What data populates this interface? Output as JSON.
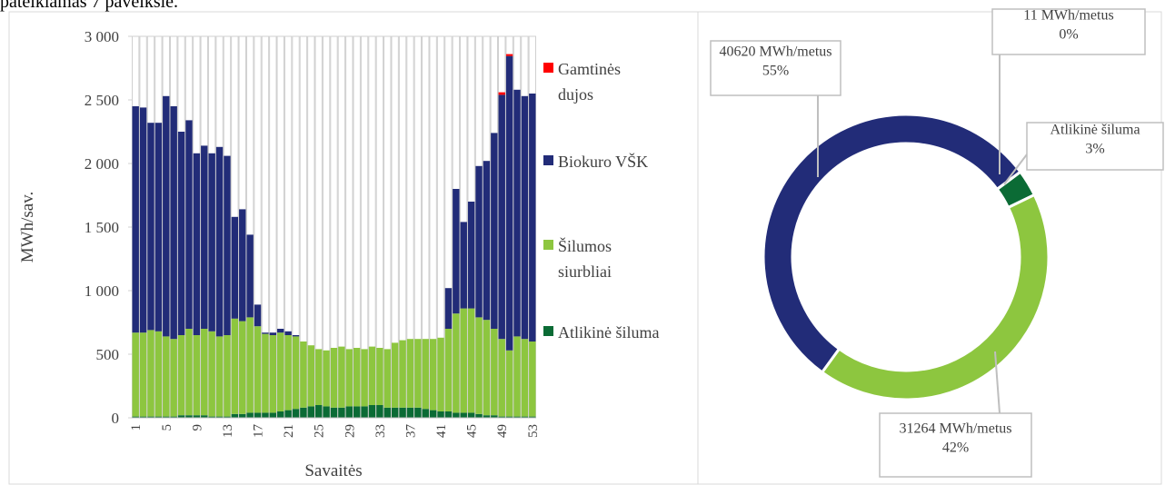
{
  "page_text": "pateikiamas 7 paveiksle.",
  "chart_data": [
    {
      "type": "bar",
      "stacked": true,
      "y_label": "MWh/sav.",
      "x_label": "Savaitės",
      "categories": [
        1,
        null,
        null,
        null,
        5,
        null,
        null,
        null,
        9,
        null,
        null,
        null,
        13,
        null,
        null,
        null,
        17,
        null,
        null,
        null,
        21,
        null,
        null,
        null,
        25,
        null,
        null,
        null,
        29,
        null,
        null,
        null,
        33,
        null,
        null,
        null,
        37,
        null,
        null,
        null,
        41,
        null,
        null,
        null,
        45,
        null,
        null,
        null,
        49,
        null,
        null,
        null,
        53
      ],
      "series": [
        {
          "name": "Atlikinė šiluma",
          "color": "#0b6b35",
          "values": [
            10,
            10,
            10,
            10,
            10,
            10,
            20,
            20,
            20,
            20,
            10,
            10,
            10,
            30,
            30,
            40,
            40,
            40,
            40,
            50,
            60,
            70,
            80,
            90,
            100,
            90,
            80,
            80,
            90,
            90,
            90,
            100,
            100,
            80,
            80,
            80,
            80,
            80,
            70,
            60,
            50,
            50,
            40,
            40,
            40,
            30,
            20,
            20,
            10,
            10,
            10,
            10,
            10
          ]
        },
        {
          "name": "Šilumos siurbliai",
          "color": "#8dc63f",
          "values": [
            660,
            660,
            680,
            670,
            630,
            610,
            630,
            680,
            630,
            680,
            670,
            630,
            640,
            750,
            730,
            750,
            680,
            620,
            610,
            620,
            590,
            570,
            520,
            480,
            440,
            440,
            470,
            480,
            450,
            460,
            450,
            460,
            450,
            460,
            510,
            530,
            540,
            540,
            550,
            560,
            580,
            650,
            780,
            820,
            820,
            760,
            750,
            680,
            610,
            520,
            630,
            610,
            590
          ]
        },
        {
          "name": "Biokuro VŠK",
          "color": "#222c78",
          "values": [
            1780,
            1770,
            1630,
            1640,
            1890,
            1830,
            1600,
            1640,
            1430,
            1440,
            1400,
            1490,
            1410,
            800,
            880,
            650,
            170,
            10,
            20,
            30,
            30,
            10,
            0,
            0,
            0,
            0,
            0,
            0,
            0,
            0,
            0,
            0,
            0,
            0,
            0,
            0,
            0,
            0,
            0,
            0,
            0,
            320,
            980,
            680,
            840,
            1190,
            1250,
            1540,
            1920,
            2315,
            1940,
            1910,
            1950
          ]
        },
        {
          "name": "Gamtinės dujos",
          "color": "#ff0000",
          "values": [
            0,
            0,
            0,
            0,
            0,
            0,
            0,
            0,
            0,
            0,
            0,
            0,
            0,
            0,
            0,
            0,
            0,
            0,
            0,
            0,
            0,
            0,
            0,
            0,
            0,
            0,
            0,
            0,
            0,
            0,
            0,
            0,
            0,
            0,
            0,
            0,
            0,
            0,
            0,
            0,
            0,
            0,
            0,
            0,
            0,
            0,
            0,
            0,
            20,
            15,
            0,
            0,
            0
          ]
        }
      ],
      "ylim": [
        0,
        3000
      ],
      "yticks": [
        0,
        500,
        {
          "value": 1000,
          "label": "1 000"
        },
        {
          "value": 1500,
          "label": "1 500"
        },
        {
          "value": 2000,
          "label": "2 000"
        },
        {
          "value": 2500,
          "label": "2 500"
        },
        {
          "value": 3000,
          "label": "3 000"
        }
      ]
    },
    {
      "type": "donut",
      "categories": [
        "Biokuro VŠK",
        "Gamtinės dujos",
        "Atlikinė šiluma",
        "Šilumos siurbliai"
      ],
      "values": [
        40620,
        11,
        2220,
        31264
      ],
      "colors": [
        "#222c78",
        "#ff0000",
        "#0b6b35",
        "#8dc63f"
      ],
      "labels": [
        [
          "40620 MWh/metus",
          "55%"
        ],
        [
          "11 MWh/metus",
          "0%"
        ],
        [
          "Atlikinė šiluma",
          "3%"
        ],
        [
          "31264 MWh/metus",
          "42%"
        ]
      ]
    }
  ]
}
